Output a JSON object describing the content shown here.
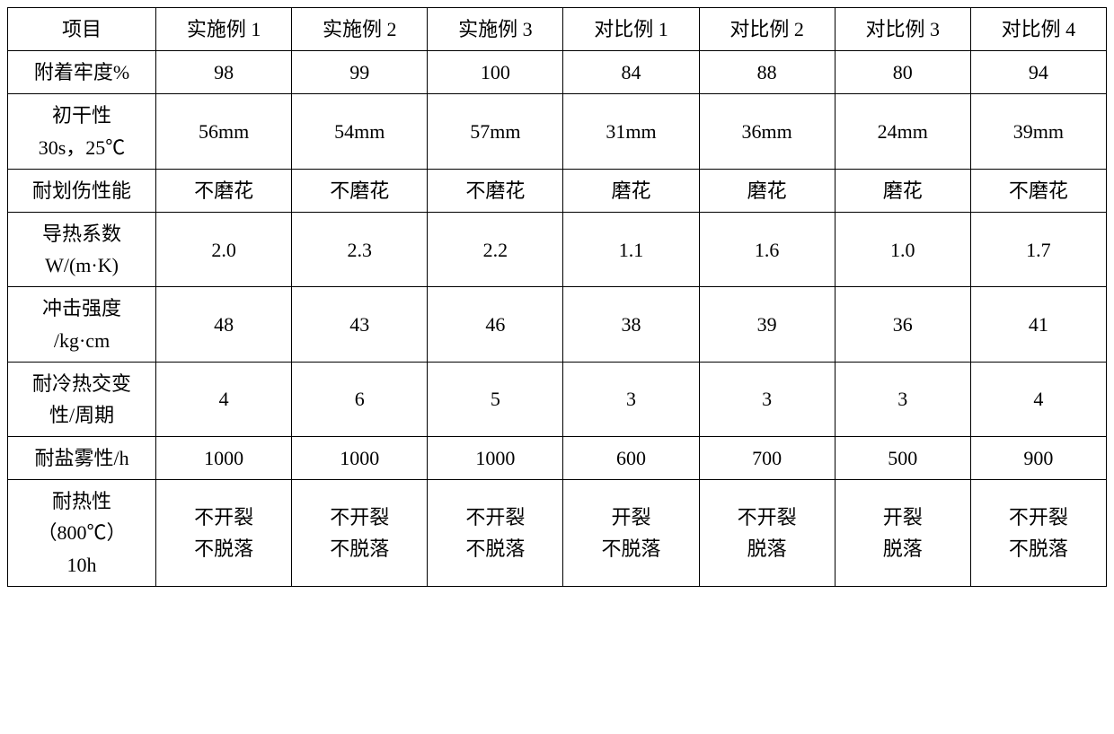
{
  "table": {
    "columns": [
      "项目",
      "实施例 1",
      "实施例 2",
      "实施例 3",
      "对比例 1",
      "对比例 2",
      "对比例 3",
      "对比例 4"
    ],
    "rows": [
      {
        "label": "附着牢度%",
        "values": [
          "98",
          "99",
          "100",
          "84",
          "88",
          "80",
          "94"
        ]
      },
      {
        "label": "初干性\n30s，25℃",
        "values": [
          "56mm",
          "54mm",
          "57mm",
          "31mm",
          "36mm",
          "24mm",
          "39mm"
        ]
      },
      {
        "label": "耐划伤性能",
        "values": [
          "不磨花",
          "不磨花",
          "不磨花",
          "磨花",
          "磨花",
          "磨花",
          "不磨花"
        ]
      },
      {
        "label": "导热系数\nW/(m·K)",
        "values": [
          "2.0",
          "2.3",
          "2.2",
          "1.1",
          "1.6",
          "1.0",
          "1.7"
        ]
      },
      {
        "label": "冲击强度\n/kg·cm",
        "values": [
          "48",
          "43",
          "46",
          "38",
          "39",
          "36",
          "41"
        ]
      },
      {
        "label": "耐冷热交变\n性/周期",
        "values": [
          "4",
          "6",
          "5",
          "3",
          "3",
          "3",
          "4"
        ]
      },
      {
        "label": "耐盐雾性/h",
        "values": [
          "1000",
          "1000",
          "1000",
          "600",
          "700",
          "500",
          "900"
        ]
      },
      {
        "label": "耐热性\n（800℃）\n10h",
        "values": [
          "不开裂\n不脱落",
          "不开裂\n不脱落",
          "不开裂\n不脱落",
          "开裂\n不脱落",
          "不开裂\n脱落",
          "开裂\n脱落",
          "不开裂\n不脱落"
        ]
      }
    ],
    "border_color": "#000000",
    "background_color": "#ffffff",
    "text_color": "#000000",
    "font_family": "SimSun",
    "font_size": 22,
    "cell_padding": 6,
    "column_widths": {
      "first": "13.5%",
      "data": "12.36%"
    }
  }
}
